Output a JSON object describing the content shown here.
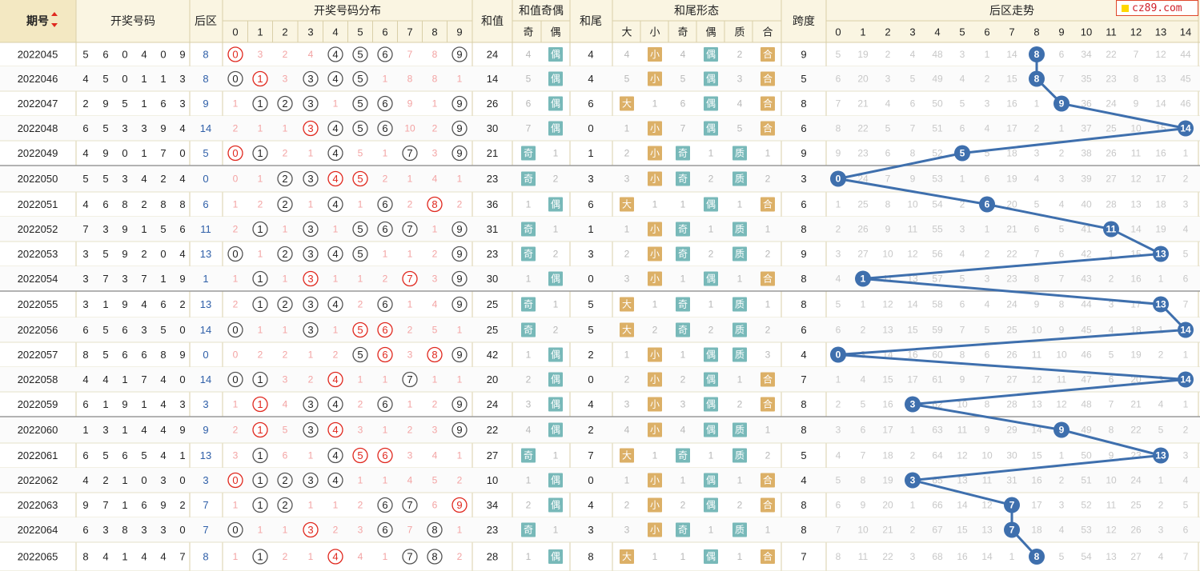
{
  "brand": {
    "text": "cz89.com"
  },
  "headers": {
    "period": "期号",
    "draw": "开奖号码",
    "back": "后区",
    "dist": "开奖号码分布",
    "sum": "和值",
    "sum_parity": "和值奇偶",
    "tail": "和尾",
    "tail_form": "和尾形态",
    "span": "跨度",
    "trend": "后区走势"
  },
  "sub_labels": {
    "digits": [
      "0",
      "1",
      "2",
      "3",
      "4",
      "5",
      "6",
      "7",
      "8",
      "9"
    ],
    "parity": [
      "奇",
      "偶"
    ],
    "form": [
      "大",
      "小",
      "奇",
      "偶",
      "质",
      "合"
    ],
    "trend": [
      "0",
      "1",
      "2",
      "3",
      "4",
      "5",
      "6",
      "7",
      "8",
      "9",
      "10",
      "11",
      "12",
      "13",
      "14"
    ]
  },
  "colors": {
    "header_bg": "#faf5e2",
    "border": "#d9cfa8",
    "hit_blue": "#3e6fad",
    "miss_text": "#b8b8b8",
    "red": "#e0281e",
    "orange_tag": "#dcb067",
    "teal_tag": "#78b9b9"
  },
  "chart_data": {
    "type": "table",
    "rows": [
      {
        "period": "2022045",
        "draw": "5 6 0 4 0 9",
        "back": "8",
        "dist": [
          "0",
          "3",
          "2",
          "4",
          "4",
          "5",
          "6",
          "7",
          "8",
          "9"
        ],
        "sum": "24",
        "parity": [
          "4",
          "偶"
        ],
        "tail": "4",
        "form": [
          "4",
          "小",
          "4",
          "偶",
          "2",
          "合"
        ],
        "span": "9",
        "trend": [
          "5",
          "19",
          "2",
          "4",
          "48",
          "3",
          "1",
          "14",
          "8",
          "6",
          "34",
          "22",
          "7",
          "12",
          "44"
        ]
      },
      {
        "period": "2022046",
        "draw": "4 5 0 1 1 3",
        "back": "8",
        "dist": [
          "0",
          "1",
          "3",
          "3",
          "4",
          "5",
          "1",
          "8",
          "8",
          "1"
        ],
        "sum": "14",
        "parity": [
          "5",
          "偶"
        ],
        "tail": "4",
        "form": [
          "5",
          "小",
          "5",
          "偶",
          "3",
          "合"
        ],
        "span": "5",
        "trend": [
          "6",
          "20",
          "3",
          "5",
          "49",
          "4",
          "2",
          "15",
          "8",
          "7",
          "35",
          "23",
          "8",
          "13",
          "45"
        ]
      },
      {
        "period": "2022047",
        "draw": "2 9 5 1 6 3",
        "back": "9",
        "dist": [
          "1",
          "1",
          "2",
          "3",
          "1",
          "5",
          "6",
          "9",
          "1",
          "9"
        ],
        "sum": "26",
        "parity": [
          "6",
          "偶"
        ],
        "tail": "6",
        "form": [
          "大",
          "1",
          "6",
          "偶",
          "4",
          "合"
        ],
        "span": "8",
        "trend": [
          "7",
          "21",
          "4",
          "6",
          "50",
          "5",
          "3",
          "16",
          "1",
          "9",
          "36",
          "24",
          "9",
          "14",
          "46"
        ]
      },
      {
        "period": "2022048",
        "draw": "6 5 3 3 9 4",
        "back": "14",
        "dist": [
          "2",
          "1",
          "1",
          "3",
          "4",
          "5",
          "6",
          "10",
          "2",
          "9"
        ],
        "sum": "30",
        "parity": [
          "7",
          "偶"
        ],
        "tail": "0",
        "form": [
          "1",
          "小",
          "7",
          "偶",
          "5",
          "合"
        ],
        "span": "6",
        "trend": [
          "8",
          "22",
          "5",
          "7",
          "51",
          "6",
          "4",
          "17",
          "2",
          "1",
          "37",
          "25",
          "10",
          "15",
          "14"
        ]
      },
      {
        "period": "2022049",
        "draw": "4 9 0 1 7 0",
        "back": "5",
        "dist": [
          "0",
          "1",
          "2",
          "1",
          "4",
          "5",
          "1",
          "7",
          "3",
          "9"
        ],
        "sum": "21",
        "parity": [
          "奇",
          "1"
        ],
        "tail": "1",
        "form": [
          "2",
          "小",
          "奇",
          "1",
          "质",
          "1"
        ],
        "span": "9",
        "trend": [
          "9",
          "23",
          "6",
          "8",
          "52",
          "5",
          "5",
          "18",
          "3",
          "2",
          "38",
          "26",
          "11",
          "16",
          "1"
        ]
      },
      {
        "period": "2022050",
        "draw": "5 5 3 4 2 4",
        "back": "0",
        "dist": [
          "0",
          "1",
          "2",
          "3",
          "4",
          "5",
          "2",
          "1",
          "4",
          "1"
        ],
        "sum": "23",
        "parity": [
          "奇",
          "2"
        ],
        "tail": "3",
        "form": [
          "3",
          "小",
          "奇",
          "2",
          "质",
          "2"
        ],
        "span": "3",
        "trend": [
          "0",
          "24",
          "7",
          "9",
          "53",
          "1",
          "6",
          "19",
          "4",
          "3",
          "39",
          "27",
          "12",
          "17",
          "2"
        ]
      },
      {
        "period": "2022051",
        "draw": "4 6 8 2 8 8",
        "back": "6",
        "dist": [
          "1",
          "2",
          "2",
          "1",
          "4",
          "1",
          "6",
          "2",
          "8",
          "2"
        ],
        "sum": "36",
        "parity": [
          "1",
          "偶"
        ],
        "tail": "6",
        "form": [
          "大",
          "1",
          "1",
          "偶",
          "1",
          "合"
        ],
        "span": "6",
        "trend": [
          "1",
          "25",
          "8",
          "10",
          "54",
          "2",
          "6",
          "20",
          "5",
          "4",
          "40",
          "28",
          "13",
          "18",
          "3"
        ]
      },
      {
        "period": "2022052",
        "draw": "7 3 9 1 5 6",
        "back": "11",
        "dist": [
          "2",
          "1",
          "1",
          "3",
          "1",
          "5",
          "6",
          "7",
          "1",
          "9"
        ],
        "sum": "31",
        "parity": [
          "奇",
          "1"
        ],
        "tail": "1",
        "form": [
          "1",
          "小",
          "奇",
          "1",
          "质",
          "1"
        ],
        "span": "8",
        "trend": [
          "2",
          "26",
          "9",
          "11",
          "55",
          "3",
          "1",
          "21",
          "6",
          "5",
          "41",
          "11",
          "14",
          "19",
          "4"
        ]
      },
      {
        "period": "2022053",
        "draw": "3 5 9 2 0 4",
        "back": "13",
        "dist": [
          "0",
          "1",
          "2",
          "3",
          "4",
          "5",
          "1",
          "1",
          "2",
          "9"
        ],
        "sum": "23",
        "parity": [
          "奇",
          "2"
        ],
        "tail": "3",
        "form": [
          "2",
          "小",
          "奇",
          "2",
          "质",
          "2"
        ],
        "span": "9",
        "trend": [
          "3",
          "27",
          "10",
          "12",
          "56",
          "4",
          "2",
          "22",
          "7",
          "6",
          "42",
          "1",
          "15",
          "13",
          "5"
        ]
      },
      {
        "period": "2022054",
        "draw": "3 7 3 7 1 9",
        "back": "1",
        "dist": [
          "1",
          "1",
          "1",
          "3",
          "1",
          "1",
          "2",
          "7",
          "3",
          "9"
        ],
        "sum": "30",
        "parity": [
          "1",
          "偶"
        ],
        "tail": "0",
        "form": [
          "3",
          "小",
          "1",
          "偶",
          "1",
          "合"
        ],
        "span": "8",
        "trend": [
          "4",
          "1",
          "11",
          "13",
          "57",
          "5",
          "3",
          "23",
          "8",
          "7",
          "43",
          "2",
          "16",
          "1",
          "6"
        ]
      },
      {
        "period": "2022055",
        "draw": "3 1 9 4 6 2",
        "back": "13",
        "dist": [
          "2",
          "1",
          "2",
          "3",
          "4",
          "2",
          "6",
          "1",
          "4",
          "9"
        ],
        "sum": "25",
        "parity": [
          "奇",
          "1"
        ],
        "tail": "5",
        "form": [
          "大",
          "1",
          "奇",
          "1",
          "质",
          "1"
        ],
        "span": "8",
        "trend": [
          "5",
          "1",
          "12",
          "14",
          "58",
          "6",
          "4",
          "24",
          "9",
          "8",
          "44",
          "3",
          "17",
          "13",
          "7"
        ]
      },
      {
        "period": "2022056",
        "draw": "6 5 6 3 5 0",
        "back": "14",
        "dist": [
          "0",
          "1",
          "1",
          "3",
          "1",
          "5",
          "6",
          "2",
          "5",
          "1"
        ],
        "sum": "25",
        "parity": [
          "奇",
          "2"
        ],
        "tail": "5",
        "form": [
          "大",
          "2",
          "奇",
          "2",
          "质",
          "2"
        ],
        "span": "6",
        "trend": [
          "6",
          "2",
          "13",
          "15",
          "59",
          "7",
          "5",
          "25",
          "10",
          "9",
          "45",
          "4",
          "18",
          "1",
          "14"
        ]
      },
      {
        "period": "2022057",
        "draw": "8 5 6 6 8 9",
        "back": "0",
        "dist": [
          "0",
          "2",
          "2",
          "1",
          "2",
          "5",
          "6",
          "3",
          "8",
          "9"
        ],
        "sum": "42",
        "parity": [
          "1",
          "偶"
        ],
        "tail": "2",
        "form": [
          "1",
          "小",
          "1",
          "偶",
          "质",
          "3"
        ],
        "span": "4",
        "trend": [
          "0",
          "3",
          "14",
          "16",
          "60",
          "8",
          "6",
          "26",
          "11",
          "10",
          "46",
          "5",
          "19",
          "2",
          "1"
        ]
      },
      {
        "period": "2022058",
        "draw": "4 4 1 7 4 0",
        "back": "14",
        "dist": [
          "0",
          "1",
          "3",
          "2",
          "4",
          "1",
          "1",
          "7",
          "1",
          "1"
        ],
        "sum": "20",
        "parity": [
          "2",
          "偶"
        ],
        "tail": "0",
        "form": [
          "2",
          "小",
          "2",
          "偶",
          "1",
          "合"
        ],
        "span": "7",
        "trend": [
          "1",
          "4",
          "15",
          "17",
          "61",
          "9",
          "7",
          "27",
          "12",
          "11",
          "47",
          "6",
          "20",
          "3",
          "14"
        ]
      },
      {
        "period": "2022059",
        "draw": "6 1 9 1 4 3",
        "back": "3",
        "dist": [
          "1",
          "1",
          "4",
          "3",
          "4",
          "2",
          "6",
          "1",
          "2",
          "9"
        ],
        "sum": "24",
        "parity": [
          "3",
          "偶"
        ],
        "tail": "4",
        "form": [
          "3",
          "小",
          "3",
          "偶",
          "2",
          "合"
        ],
        "span": "8",
        "trend": [
          "2",
          "5",
          "16",
          "3",
          "62",
          "10",
          "8",
          "28",
          "13",
          "12",
          "48",
          "7",
          "21",
          "4",
          "1"
        ]
      },
      {
        "period": "2022060",
        "draw": "1 3 1 4 4 9",
        "back": "9",
        "dist": [
          "2",
          "1",
          "5",
          "3",
          "4",
          "3",
          "1",
          "2",
          "3",
          "9"
        ],
        "sum": "22",
        "parity": [
          "4",
          "偶"
        ],
        "tail": "2",
        "form": [
          "4",
          "小",
          "4",
          "偶",
          "质",
          "1"
        ],
        "span": "8",
        "trend": [
          "3",
          "6",
          "17",
          "1",
          "63",
          "11",
          "9",
          "29",
          "14",
          "9",
          "49",
          "8",
          "22",
          "5",
          "2"
        ]
      },
      {
        "period": "2022061",
        "draw": "6 5 6 5 4 1",
        "back": "13",
        "dist": [
          "3",
          "1",
          "6",
          "1",
          "4",
          "5",
          "6",
          "3",
          "4",
          "1"
        ],
        "sum": "27",
        "parity": [
          "奇",
          "1"
        ],
        "tail": "7",
        "form": [
          "大",
          "1",
          "奇",
          "1",
          "质",
          "2"
        ],
        "span": "5",
        "trend": [
          "4",
          "7",
          "18",
          "2",
          "64",
          "12",
          "10",
          "30",
          "15",
          "1",
          "50",
          "9",
          "23",
          "13",
          "3"
        ]
      },
      {
        "period": "2022062",
        "draw": "4 2 1 0 3 0",
        "back": "3",
        "dist": [
          "0",
          "1",
          "2",
          "3",
          "4",
          "1",
          "1",
          "4",
          "5",
          "2"
        ],
        "sum": "10",
        "parity": [
          "1",
          "偶"
        ],
        "tail": "0",
        "form": [
          "1",
          "小",
          "1",
          "偶",
          "1",
          "合"
        ],
        "span": "4",
        "trend": [
          "5",
          "8",
          "19",
          "3",
          "65",
          "13",
          "11",
          "31",
          "16",
          "2",
          "51",
          "10",
          "24",
          "1",
          "4"
        ]
      },
      {
        "period": "2022063",
        "draw": "9 7 1 6 9 2",
        "back": "7",
        "dist": [
          "1",
          "1",
          "2",
          "1",
          "1",
          "2",
          "6",
          "7",
          "6",
          "9"
        ],
        "sum": "34",
        "parity": [
          "2",
          "偶"
        ],
        "tail": "4",
        "form": [
          "2",
          "小",
          "2",
          "偶",
          "2",
          "合"
        ],
        "span": "8",
        "trend": [
          "6",
          "9",
          "20",
          "1",
          "66",
          "14",
          "12",
          "7",
          "17",
          "3",
          "52",
          "11",
          "25",
          "2",
          "5"
        ]
      },
      {
        "period": "2022064",
        "draw": "6 3 8 3 3 0",
        "back": "7",
        "dist": [
          "0",
          "1",
          "1",
          "3",
          "2",
          "3",
          "6",
          "7",
          "8",
          "1"
        ],
        "sum": "23",
        "parity": [
          "奇",
          "1"
        ],
        "tail": "3",
        "form": [
          "3",
          "小",
          "奇",
          "1",
          "质",
          "1"
        ],
        "span": "8",
        "trend": [
          "7",
          "10",
          "21",
          "2",
          "67",
          "15",
          "13",
          "7",
          "18",
          "4",
          "53",
          "12",
          "26",
          "3",
          "6"
        ]
      },
      {
        "period": "2022065",
        "draw": "8 4 1 4 4 7",
        "back": "8",
        "dist": [
          "1",
          "1",
          "2",
          "1",
          "4",
          "4",
          "1",
          "7",
          "8",
          "2"
        ],
        "sum": "28",
        "parity": [
          "1",
          "偶"
        ],
        "tail": "8",
        "form": [
          "大",
          "1",
          "1",
          "偶",
          "1",
          "合"
        ],
        "span": "7",
        "trend": [
          "8",
          "11",
          "22",
          "3",
          "68",
          "16",
          "14",
          "1",
          "8",
          "5",
          "54",
          "13",
          "27",
          "4",
          "7"
        ]
      }
    ]
  }
}
